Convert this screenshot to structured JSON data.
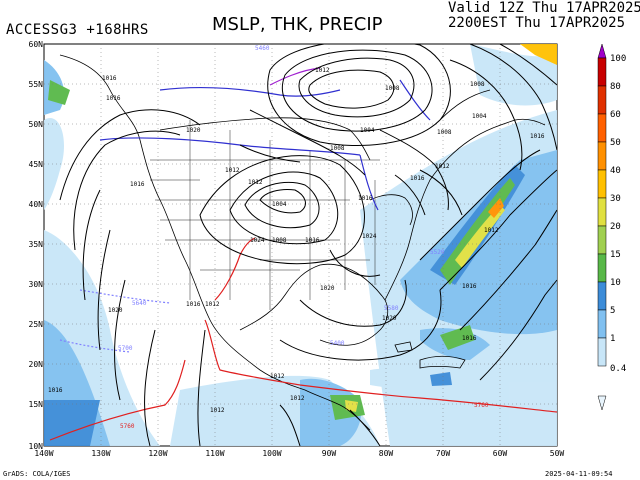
{
  "header": {
    "model_run": "ACCESSG3 +168HRS",
    "title": "MSLP, THK, PRECIP",
    "valid_line1": "Valid 12Z Thu 17APR2025",
    "valid_line2": "2200EST Thu 17APR2025"
  },
  "footer": {
    "source": "GrADS: COLA/IGES",
    "timestamp": "2025-04-11-09:54"
  },
  "axes": {
    "lat_labels": [
      "60N",
      "55N",
      "50N",
      "45N",
      "40N",
      "35N",
      "30N",
      "25N",
      "20N",
      "15N",
      "10N"
    ],
    "lon_labels": [
      "140W",
      "130W",
      "120W",
      "110W",
      "100W",
      "90W",
      "80W",
      "70W",
      "60W",
      "50W"
    ]
  },
  "colorbar": {
    "labels": [
      "100",
      "80",
      "60",
      "50",
      "40",
      "30",
      "20",
      "15",
      "10",
      "5",
      "1",
      "0.4"
    ],
    "colors": [
      "#a000c8",
      "#c80000",
      "#e03000",
      "#ff6000",
      "#ff9000",
      "#ffc000",
      "#e0e040",
      "#a0d050",
      "#58b848",
      "#3c8cd8",
      "#80c0f0",
      "#c8e6f8",
      "#e8f4fc"
    ]
  },
  "map_labels": {
    "isobars": [
      "1016",
      "1016",
      "1012",
      "1020",
      "1016",
      "1012",
      "1004",
      "1008",
      "1016",
      "1020",
      "1024",
      "1016",
      "1012",
      "1008",
      "1004",
      "1008",
      "1012",
      "1016",
      "1020",
      "1016",
      "1012",
      "1016",
      "1016",
      "1012",
      "1012",
      "1008",
      "1004",
      "1008",
      "1012",
      "1016",
      "1020",
      "1024",
      "1016",
      "1012",
      "1008",
      "1004",
      "1000",
      "1004",
      "1008",
      "1012",
      "1016",
      "1012",
      "1016",
      "1012"
    ],
    "thickness": [
      "5760",
      "5700",
      "5640",
      "5580",
      "5520",
      "5460",
      "5400",
      "5760",
      "5700",
      "5640",
      "5580",
      "5520",
      "5460"
    ]
  }
}
